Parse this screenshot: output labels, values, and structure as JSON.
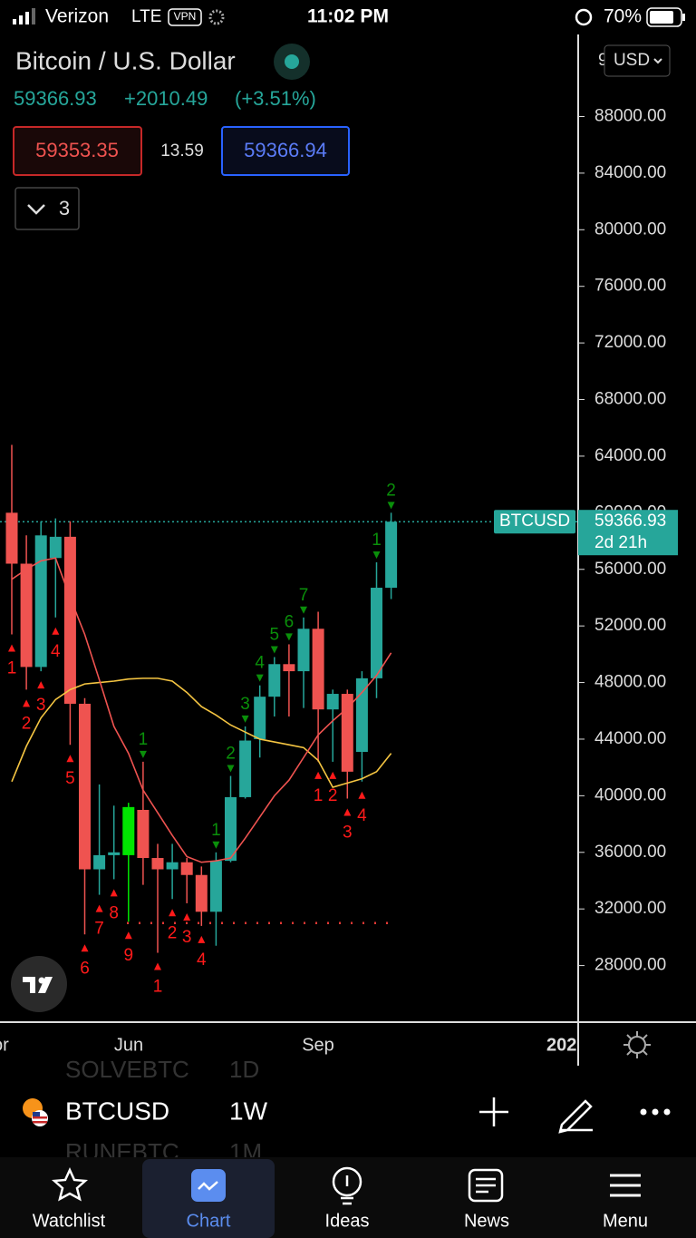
{
  "status_bar": {
    "carrier": "Verizon",
    "network": "LTE",
    "vpn": "VPN",
    "time": "11:02 PM",
    "battery": "70%"
  },
  "header": {
    "title": "Bitcoin / U.S. Dollar",
    "price": "59366.93",
    "change": "+2010.49",
    "change_pct": "(+3.51%)",
    "bid": "59353.35",
    "spread": "13.59",
    "ask": "59366.94",
    "indicators": "3",
    "currency_clipped": "9",
    "currency": "USD"
  },
  "chart_data": {
    "type": "candlestick",
    "up_color": "#26a69a",
    "down_color": "#ef5350",
    "candles": [
      {
        "open": 60000,
        "high": 64800,
        "low": 51400,
        "close": 56400,
        "td_red": "1"
      },
      {
        "open": 56400,
        "high": 58400,
        "low": 47500,
        "close": 49100,
        "td_red": "2"
      },
      {
        "open": 49100,
        "high": 59400,
        "low": 48800,
        "close": 58400,
        "td_red": "3"
      },
      {
        "open": 56800,
        "high": 59600,
        "low": 52600,
        "close": 58300,
        "td_red": "4"
      },
      {
        "open": 58300,
        "high": 59400,
        "low": 43600,
        "close": 46500,
        "td_red": "5"
      },
      {
        "open": 46500,
        "high": 46900,
        "low": 30200,
        "close": 34800,
        "td_red": "6"
      },
      {
        "open": 34800,
        "high": 40800,
        "low": 33000,
        "close": 35800,
        "td_red": "7"
      },
      {
        "open": 35800,
        "high": 39300,
        "low": 34100,
        "close": 36000,
        "td_red": "8"
      },
      {
        "open": 35800,
        "high": 39500,
        "low": 31100,
        "close": 39200,
        "td_red": "9",
        "color": "#00e600"
      },
      {
        "open": 39000,
        "high": 42400,
        "low": 33700,
        "close": 35600,
        "td_green": "1"
      },
      {
        "open": 35600,
        "high": 36600,
        "low": 28900,
        "close": 34800,
        "td_red": "1"
      },
      {
        "open": 34800,
        "high": 36600,
        "low": 32700,
        "close": 35300,
        "td_red": "2"
      },
      {
        "open": 35300,
        "high": 35600,
        "low": 32400,
        "close": 34400,
        "td_red": "3"
      },
      {
        "open": 34400,
        "high": 35000,
        "low": 30800,
        "close": 31800,
        "td_red": "4"
      },
      {
        "open": 31800,
        "high": 36000,
        "low": 29400,
        "close": 35400,
        "td_green": "1"
      },
      {
        "open": 35400,
        "high": 41400,
        "low": 35300,
        "close": 39900,
        "td_green": "2"
      },
      {
        "open": 39900,
        "high": 44900,
        "low": 39800,
        "close": 43900,
        "td_green": "3"
      },
      {
        "open": 44000,
        "high": 47800,
        "low": 42700,
        "close": 47000,
        "td_green": "4"
      },
      {
        "open": 47000,
        "high": 49800,
        "low": 45600,
        "close": 49300,
        "td_green": "5"
      },
      {
        "open": 49300,
        "high": 50700,
        "low": 45600,
        "close": 48800,
        "td_green": "6"
      },
      {
        "open": 48800,
        "high": 52600,
        "low": 46200,
        "close": 51800,
        "td_green": "7"
      },
      {
        "open": 51800,
        "high": 53000,
        "low": 42400,
        "close": 46100,
        "td_red": "1"
      },
      {
        "open": 46100,
        "high": 47500,
        "low": 42400,
        "close": 47200,
        "td_red": "2"
      },
      {
        "open": 47200,
        "high": 47500,
        "low": 39800,
        "close": 41700,
        "td_red": "3"
      },
      {
        "open": 43100,
        "high": 48800,
        "low": 41000,
        "close": 48300,
        "td_red": "4"
      },
      {
        "open": 48300,
        "high": 56500,
        "low": 46900,
        "close": 54700,
        "td_green": "1"
      },
      {
        "open": 54700,
        "high": 60000,
        "low": 53900,
        "close": 59366.93,
        "td_green": "2"
      }
    ],
    "ma_fast": {
      "color": "#ef5350",
      "values": [
        55300,
        56000,
        56600,
        56800,
        54000,
        51400,
        48200,
        44900,
        43000,
        40400,
        38800,
        37200,
        35700,
        35300,
        35400,
        35600,
        37000,
        38500,
        40000,
        41100,
        42700,
        44300,
        45300,
        46200,
        47300,
        48500,
        50100
      ]
    },
    "ma_slow": {
      "color": "#f5c542",
      "values": [
        41000,
        43500,
        45500,
        46800,
        47500,
        47900,
        48000,
        48100,
        48250,
        48300,
        48300,
        48100,
        47300,
        46300,
        45700,
        45000,
        44500,
        44000,
        43800,
        43600,
        43400,
        42500,
        40600,
        40900,
        41200,
        41700,
        43000
      ]
    },
    "support_level": 31000,
    "last_price": {
      "value": 59366.93,
      "symbol": "BTCUSD",
      "countdown": "2d 21h"
    },
    "ylim": [
      24000,
      93800
    ],
    "yticks": [
      {
        "value": 28000,
        "label": "28000.00"
      },
      {
        "value": 32000,
        "label": "32000.00"
      },
      {
        "value": 36000,
        "label": "36000.00"
      },
      {
        "value": 40000,
        "label": "40000.00"
      },
      {
        "value": 44000,
        "label": "44000.00"
      },
      {
        "value": 48000,
        "label": "48000.00"
      },
      {
        "value": 52000,
        "label": "52000.00"
      },
      {
        "value": 56000,
        "label": "56000.00"
      },
      {
        "value": 60000,
        "label": "60000.00"
      },
      {
        "value": 64000,
        "label": "64000.00"
      },
      {
        "value": 68000,
        "label": "68000.00"
      },
      {
        "value": 72000,
        "label": "72000.00"
      },
      {
        "value": 76000,
        "label": "76000.00"
      },
      {
        "value": 80000,
        "label": "80000.00"
      },
      {
        "value": 84000,
        "label": "84000.00"
      },
      {
        "value": 88000,
        "label": "88000.00"
      }
    ],
    "x_labels": [
      "or",
      "Jun",
      "Sep",
      "202"
    ]
  },
  "toolbar": {
    "prev_symbol": "SOLVEBTC",
    "prev_interval": "1D",
    "symbol": "BTCUSD",
    "interval": "1W",
    "next_symbol": "RUNEBTC",
    "next_interval": "1M"
  },
  "tabs": [
    "Watchlist",
    "Chart",
    "Ideas",
    "News",
    "Menu"
  ]
}
